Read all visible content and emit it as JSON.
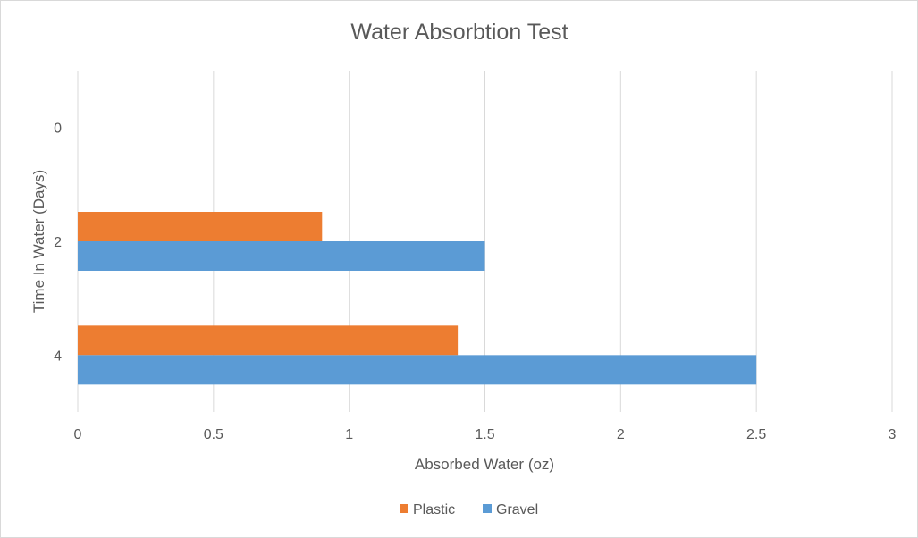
{
  "chart_data": {
    "type": "bar",
    "orientation": "horizontal",
    "title": "Water Absorbtion Test",
    "xlabel": "Absorbed Water (oz)",
    "ylabel": "Time In Water (Days)",
    "categories": [
      "0",
      "2",
      "4"
    ],
    "series": [
      {
        "name": "Plastic",
        "values": [
          0,
          0.9,
          1.4
        ],
        "color": "#ed7d31"
      },
      {
        "name": "Gravel",
        "values": [
          0,
          1.5,
          2.5
        ],
        "color": "#5b9bd5"
      }
    ],
    "xlim": [
      0,
      3
    ],
    "xticks": [
      "0",
      "0.5",
      "1",
      "1.5",
      "2",
      "2.5",
      "3"
    ],
    "grid": true,
    "legend_position": "bottom"
  }
}
